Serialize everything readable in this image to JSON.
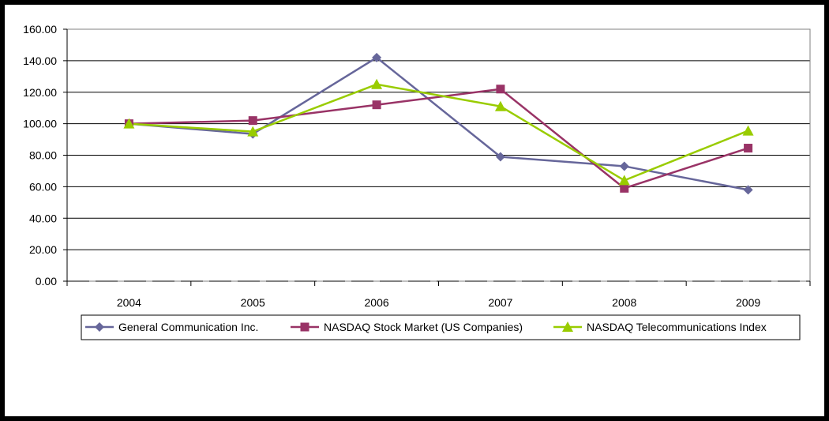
{
  "chart_data": {
    "type": "line",
    "categories": [
      "2004",
      "2005",
      "2006",
      "2007",
      "2008",
      "2009"
    ],
    "ylim": [
      0,
      160
    ],
    "yticks": [
      "0.00",
      "20.00",
      "40.00",
      "60.00",
      "80.00",
      "100.00",
      "120.00",
      "140.00",
      "160.00"
    ],
    "grid": true,
    "legend_position": "bottom",
    "series": [
      {
        "name": "General Communication Inc.",
        "values": [
          100,
          93.5,
          142,
          79,
          73,
          58
        ],
        "color": "#66669a",
        "marker": "diamond"
      },
      {
        "name": "NASDAQ Stock Market (US Companies)",
        "values": [
          100,
          102,
          112,
          122,
          59,
          84.5
        ],
        "color": "#993366",
        "marker": "square"
      },
      {
        "name": "NASDAQ Telecommunications Index",
        "values": [
          100,
          95,
          125,
          111,
          64,
          95.5
        ],
        "color": "#99cc00",
        "marker": "triangle"
      }
    ]
  }
}
